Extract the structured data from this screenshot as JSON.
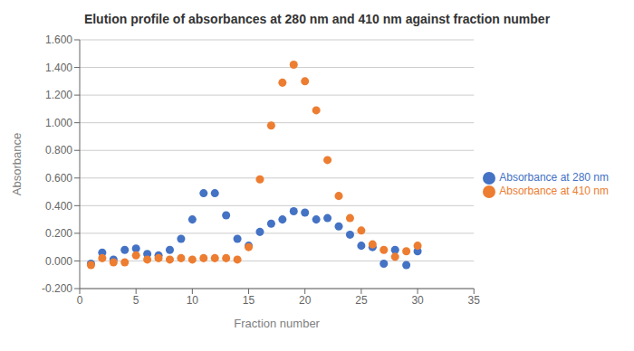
{
  "chart_data": {
    "type": "scatter",
    "title": "Elution profile of absorbances at 280 nm and 410 nm against fraction number",
    "xlabel": "Fraction number",
    "ylabel": "Absorbance",
    "x": [
      1,
      2,
      3,
      4,
      5,
      6,
      7,
      8,
      9,
      10,
      11,
      12,
      13,
      14,
      15,
      16,
      17,
      18,
      19,
      20,
      21,
      22,
      23,
      24,
      25,
      26,
      27,
      28,
      29,
      30
    ],
    "series": [
      {
        "name": "Absorbance at 280 nm",
        "color": "#4472C4",
        "values": [
          -0.02,
          0.06,
          0.01,
          0.08,
          0.09,
          0.05,
          0.04,
          0.08,
          0.16,
          0.3,
          0.49,
          0.49,
          0.33,
          0.16,
          0.11,
          0.21,
          0.27,
          0.3,
          0.36,
          0.35,
          0.3,
          0.31,
          0.25,
          0.19,
          0.11,
          0.1,
          -0.02,
          0.08,
          -0.03,
          0.07
        ]
      },
      {
        "name": "Absorbance at 410 nm",
        "color": "#ED7D31",
        "values": [
          -0.03,
          0.02,
          -0.01,
          -0.01,
          0.04,
          0.01,
          0.02,
          0.01,
          0.02,
          0.01,
          0.02,
          0.02,
          0.02,
          0.01,
          0.1,
          0.59,
          0.98,
          1.29,
          1.42,
          1.3,
          1.09,
          0.73,
          0.47,
          0.31,
          0.22,
          0.12,
          0.08,
          0.03,
          0.07,
          0.11
        ]
      }
    ],
    "xlim": [
      0,
      35
    ],
    "xticks": [
      0,
      5,
      10,
      15,
      20,
      25,
      30,
      35
    ],
    "ylim": [
      -0.2,
      1.6
    ],
    "yticks": [
      {
        "value": -0.2,
        "label": "-0.200"
      },
      {
        "value": 0,
        "label": "0.000"
      },
      {
        "value": 0.2,
        "label": "0.200"
      },
      {
        "value": 0.4,
        "label": "0.400"
      },
      {
        "value": 0.6,
        "label": "0.600"
      },
      {
        "value": 0.8,
        "label": "0.800"
      },
      {
        "value": 1.0,
        "label": "1.000"
      },
      {
        "value": 1.2,
        "label": "1.200"
      },
      {
        "value": 1.4,
        "label": "1.400"
      },
      {
        "value": 1.6,
        "label": "1.600"
      }
    ],
    "grid": true,
    "legend": "right"
  }
}
